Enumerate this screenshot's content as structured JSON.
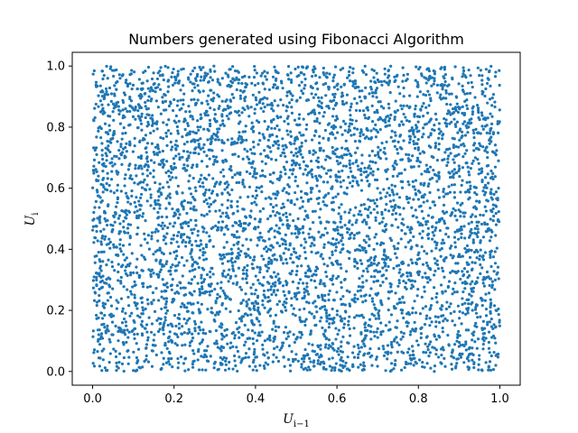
{
  "chart_data": {
    "type": "scatter",
    "title": "Numbers generated using Fibonacci Algorithm",
    "xlabel": {
      "base": "U",
      "subscript": "i−1"
    },
    "ylabel": {
      "base": "U",
      "subscript": "i"
    },
    "xlim": [
      -0.05,
      1.05
    ],
    "ylim": [
      -0.045,
      1.045
    ],
    "xticks": [
      0.0,
      0.2,
      0.4,
      0.6,
      0.8,
      1.0
    ],
    "yticks": [
      0.0,
      0.2,
      0.4,
      0.6,
      0.8,
      1.0
    ],
    "xtick_labels": [
      "0.0",
      "0.2",
      "0.4",
      "0.6",
      "0.8",
      "1.0"
    ],
    "ytick_labels": [
      "0.0",
      "0.2",
      "0.4",
      "0.6",
      "0.8",
      "1.0"
    ],
    "grid": false,
    "legend": null,
    "marker_color": "#1f77b4",
    "point_count": 5000,
    "points": [
      [
        0.01,
        0.71
      ],
      [
        0.02,
        0.85
      ],
      [
        0.05,
        0.12
      ],
      [
        0.08,
        0.33
      ],
      [
        0.12,
        0.58
      ],
      [
        0.15,
        0.94
      ],
      [
        0.18,
        0.21
      ],
      [
        0.22,
        0.47
      ],
      [
        0.26,
        0.79
      ],
      [
        0.29,
        0.05
      ],
      [
        0.33,
        0.62
      ],
      [
        0.37,
        0.18
      ],
      [
        0.41,
        0.88
      ],
      [
        0.44,
        0.36
      ],
      [
        0.48,
        0.97
      ],
      [
        0.52,
        0.27
      ],
      [
        0.55,
        0.69
      ],
      [
        0.59,
        0.09
      ],
      [
        0.63,
        0.52
      ],
      [
        0.67,
        0.83
      ],
      [
        0.7,
        0.14
      ],
      [
        0.74,
        0.41
      ],
      [
        0.78,
        0.76
      ],
      [
        0.81,
        0.03
      ],
      [
        0.85,
        0.65
      ],
      [
        0.89,
        0.29
      ],
      [
        0.92,
        0.91
      ],
      [
        0.96,
        0.44
      ],
      [
        0.99,
        0.02
      ],
      [
        0.99,
        0.98
      ]
    ]
  }
}
